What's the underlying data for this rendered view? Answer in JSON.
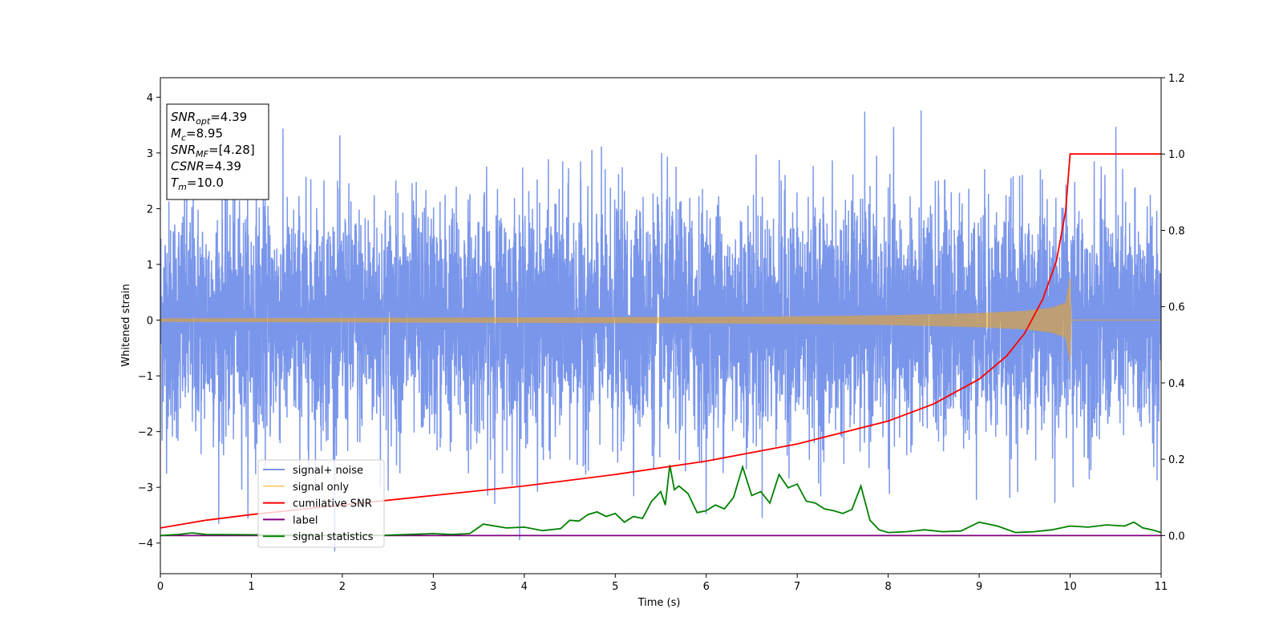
{
  "chart_data": {
    "type": "line",
    "title": "",
    "xlabel": "Time (s)",
    "ylabel": "Whitened strain",
    "y2label": "",
    "xlim": [
      0,
      11
    ],
    "ylim": [
      -4.55,
      4.35
    ],
    "y2lim": [
      -0.1,
      1.2
    ],
    "xticks": [
      "0",
      "1",
      "2",
      "3",
      "4",
      "5",
      "6",
      "7",
      "8",
      "9",
      "10",
      "11"
    ],
    "yticks": [
      "4",
      "3",
      "2",
      "1",
      "0",
      "−1",
      "−2",
      "−3",
      "−4"
    ],
    "y2ticks": [
      "1.2",
      "1.0",
      "0.8",
      "0.6",
      "0.4",
      "0.2",
      "0.0"
    ],
    "legend_position": "lower-left",
    "grid": false,
    "annotation": {
      "lines": [
        {
          "base": "SNR",
          "sub": "opt",
          "rest": "=4.39"
        },
        {
          "base": "M",
          "sub": "c",
          "rest": "=8.95"
        },
        {
          "base": "SNR",
          "sub": "MF",
          "rest": "=[4.28]"
        },
        {
          "base": "CSNR",
          "sub": "",
          "rest": "=4.39"
        },
        {
          "base": "T",
          "sub": "m",
          "rest": "=10.0"
        }
      ]
    },
    "series": [
      {
        "name": "signal+ noise",
        "color": "#4169e1",
        "axis": "left",
        "description_stats": {
          "std": 1.0,
          "mean": 0.0
        }
      },
      {
        "name": "signal only",
        "color": "#ffa500",
        "axis": "left",
        "envelope": {
          "t": [
            0,
            2,
            4,
            6,
            7,
            8,
            9,
            9.5,
            9.8,
            9.95,
            10.0,
            10.01,
            11
          ],
          "amp": [
            0.03,
            0.04,
            0.05,
            0.06,
            0.07,
            0.09,
            0.13,
            0.17,
            0.23,
            0.32,
            0.8,
            0.0,
            0.0
          ]
        }
      },
      {
        "name": "cumilative SNR",
        "color": "#ff0000",
        "axis": "right",
        "x": [
          0,
          0.5,
          1,
          2,
          3,
          4,
          5,
          6,
          7,
          8,
          8.5,
          9,
          9.3,
          9.5,
          9.7,
          9.85,
          9.95,
          10.0,
          11
        ],
        "y": [
          0.02,
          0.04,
          0.055,
          0.08,
          0.105,
          0.13,
          0.16,
          0.195,
          0.24,
          0.3,
          0.345,
          0.41,
          0.47,
          0.53,
          0.62,
          0.72,
          0.85,
          1.0,
          1.0
        ]
      },
      {
        "name": "label",
        "color": "#800080",
        "axis": "right",
        "x": [
          0,
          11
        ],
        "y": [
          0.0,
          0.0
        ]
      },
      {
        "name": "signal statistics",
        "color": "#008000",
        "axis": "right",
        "x": [
          0,
          0.2,
          0.35,
          0.5,
          1,
          1.5,
          2,
          2.5,
          3,
          3.2,
          3.4,
          3.55,
          3.8,
          4.0,
          4.2,
          4.4,
          4.5,
          4.6,
          4.7,
          4.8,
          4.9,
          5.0,
          5.1,
          5.2,
          5.3,
          5.4,
          5.5,
          5.55,
          5.6,
          5.65,
          5.7,
          5.8,
          5.9,
          6.0,
          6.1,
          6.2,
          6.3,
          6.4,
          6.5,
          6.6,
          6.7,
          6.8,
          6.9,
          7.0,
          7.1,
          7.2,
          7.3,
          7.4,
          7.5,
          7.6,
          7.7,
          7.8,
          7.9,
          8.0,
          8.2,
          8.4,
          8.6,
          8.8,
          9.0,
          9.2,
          9.4,
          9.6,
          9.8,
          10.0,
          10.2,
          10.4,
          10.6,
          10.7,
          10.8,
          10.9,
          11.0
        ],
        "y": [
          0.0,
          0.003,
          0.007,
          0.003,
          0.002,
          0.001,
          0.0,
          0.001,
          0.005,
          0.003,
          0.005,
          0.03,
          0.02,
          0.022,
          0.013,
          0.018,
          0.04,
          0.038,
          0.055,
          0.062,
          0.05,
          0.058,
          0.035,
          0.05,
          0.045,
          0.09,
          0.115,
          0.08,
          0.185,
          0.12,
          0.13,
          0.11,
          0.06,
          0.065,
          0.08,
          0.07,
          0.1,
          0.18,
          0.105,
          0.115,
          0.085,
          0.16,
          0.125,
          0.135,
          0.09,
          0.085,
          0.07,
          0.065,
          0.058,
          0.068,
          0.13,
          0.04,
          0.015,
          0.008,
          0.01,
          0.015,
          0.01,
          0.012,
          0.035,
          0.025,
          0.008,
          0.01,
          0.015,
          0.025,
          0.022,
          0.028,
          0.025,
          0.035,
          0.02,
          0.015,
          0.008
        ]
      }
    ]
  }
}
